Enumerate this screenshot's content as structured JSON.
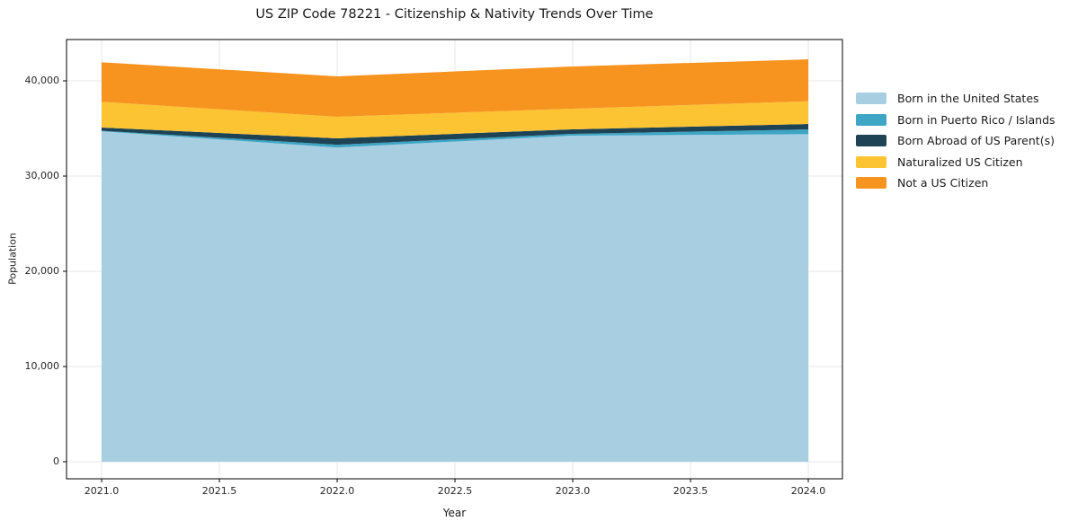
{
  "title": "US ZIP Code 78221 - Citizenship & Nativity Trends Over Time",
  "chart_data": {
    "type": "area",
    "stacked": true,
    "title": "US ZIP Code 78221 - Citizenship & Nativity Trends Over Time",
    "xlabel": "Year",
    "ylabel": "Population",
    "x": [
      2021,
      2022,
      2023,
      2024
    ],
    "series": [
      {
        "name": "Born in the United States",
        "color": "#a8cee2",
        "values": [
          34700,
          33000,
          34250,
          34400
        ]
      },
      {
        "name": "Born in Puerto Rico / Islands",
        "color": "#3ea5c5",
        "values": [
          60,
          290,
          190,
          500
        ]
      },
      {
        "name": "Born Abroad of US Parent(s)",
        "color": "#1d4355",
        "values": [
          340,
          670,
          470,
          570
        ]
      },
      {
        "name": "Naturalized US Citizen",
        "color": "#fcc333",
        "values": [
          2700,
          2270,
          2170,
          2390
        ]
      },
      {
        "name": "Not a US Citizen",
        "color": "#f7941f",
        "values": [
          4150,
          4240,
          4430,
          4400
        ]
      }
    ],
    "totals": [
      41950,
      40470,
      41510,
      42260
    ],
    "xlim": [
      2020.851,
      2024.145
    ],
    "ylim": [
      -1792,
      44340
    ],
    "x_ticks": [
      2021.0,
      2021.5,
      2022.0,
      2022.5,
      2023.0,
      2023.5,
      2024.0
    ],
    "x_tick_labels": [
      "2021.0",
      "2021.5",
      "2022.0",
      "2022.5",
      "2023.0",
      "2023.5",
      "2024.0"
    ],
    "y_ticks": [
      0,
      10000,
      20000,
      30000,
      40000
    ],
    "y_tick_labels": [
      "0",
      "10,000",
      "20,000",
      "30,000",
      "40,000"
    ],
    "grid": true,
    "grid_color": "#e7e7e7",
    "spine_color": "#000000",
    "legend_position": "outside-right"
  }
}
